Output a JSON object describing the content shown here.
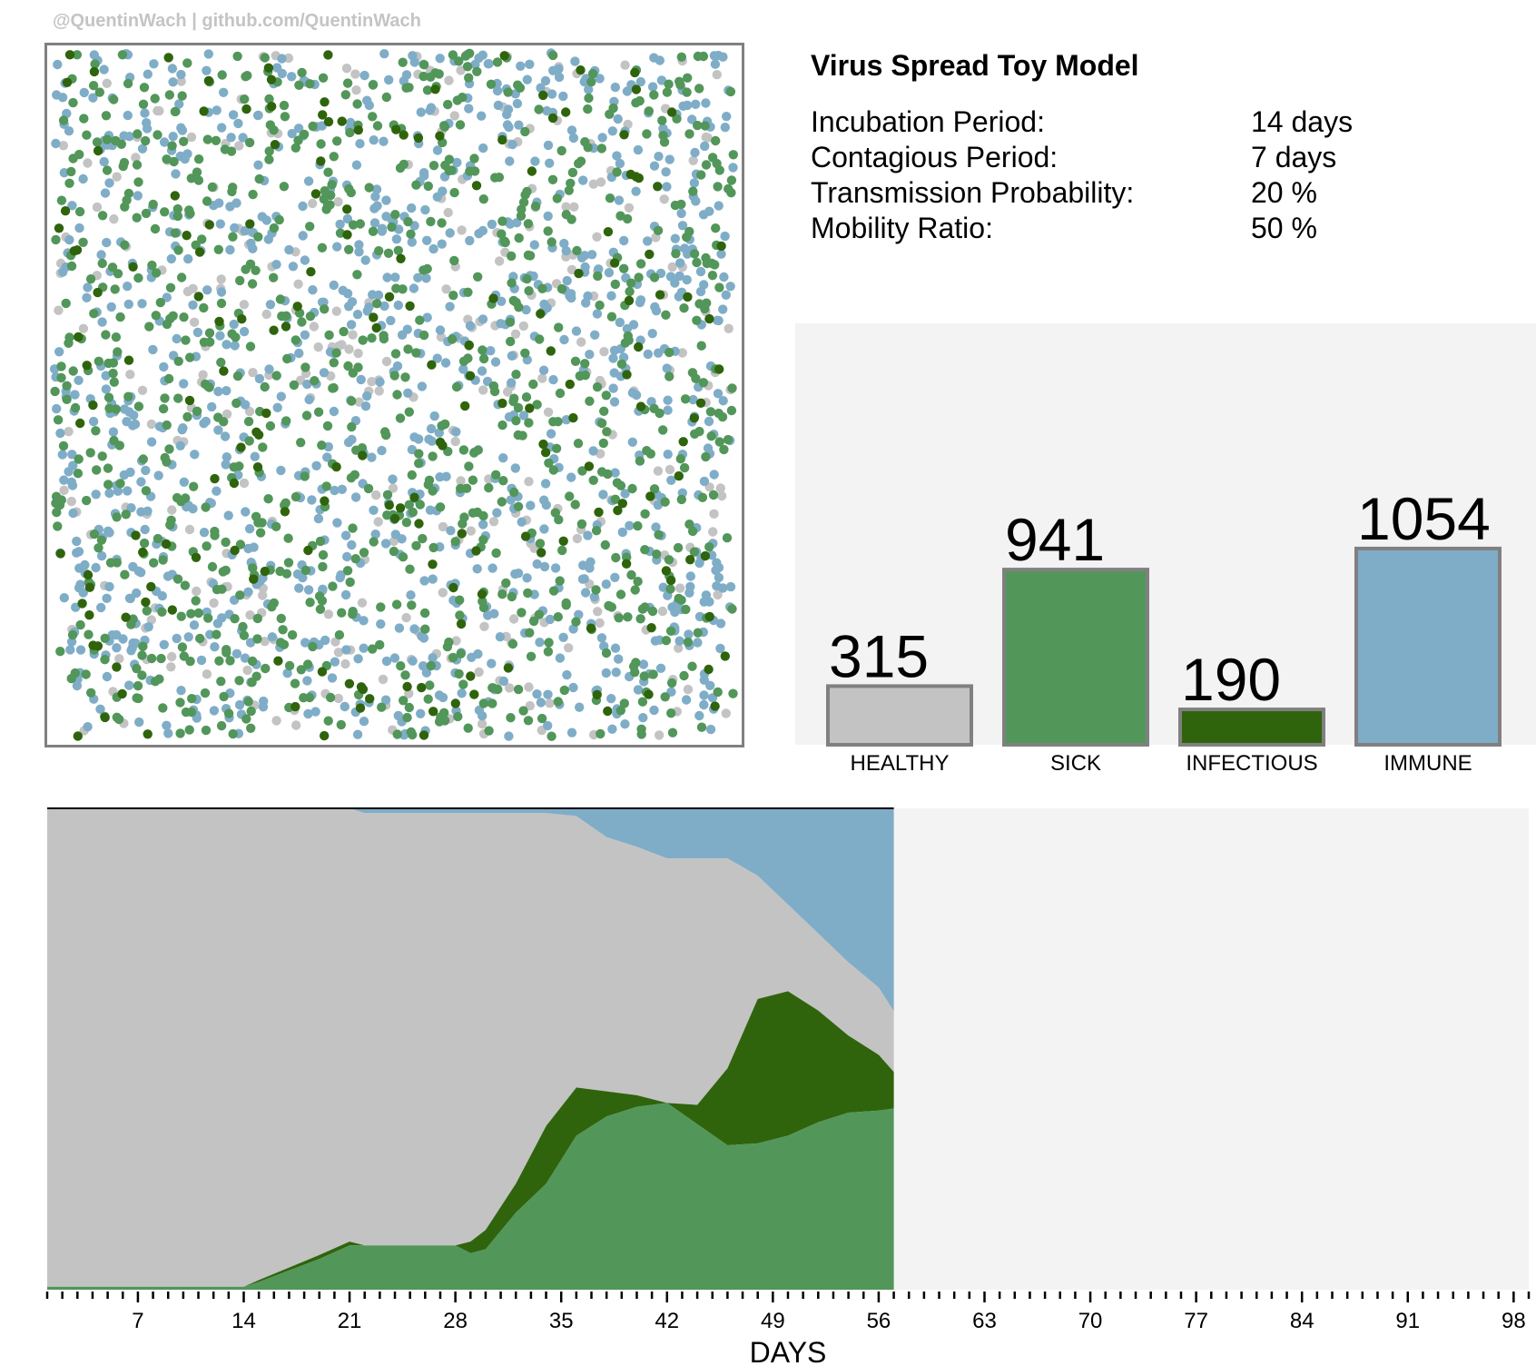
{
  "credit": "@QuentinWach | github.com/QuentinWach",
  "title": "Virus Spread Toy Model",
  "parameters": [
    {
      "label": "Incubation Period:",
      "value": "14 days"
    },
    {
      "label": "Contagious Period:",
      "value": "7 days"
    },
    {
      "label": "Transmission Probability:",
      "value": "20 %"
    },
    {
      "label": "Mobility Ratio:",
      "value": "50 %"
    }
  ],
  "colors": {
    "healthy": "#c3c3c3",
    "sick": "#52965a",
    "infectious": "#2f640d",
    "immune": "#7fadc7",
    "panel": "#f3f3f3",
    "border": "#808080"
  },
  "chart_data": [
    {
      "type": "scatter",
      "description": "population simulation",
      "counts": {
        "healthy": 315,
        "sick": 941,
        "infectious": 190,
        "immune": 1054
      }
    },
    {
      "type": "bar",
      "categories": [
        "HEALTHY",
        "SICK",
        "INFECTIOUS",
        "IMMUNE"
      ],
      "values": [
        315,
        941,
        190,
        1054
      ],
      "colors": [
        "#c3c3c3",
        "#52965a",
        "#2f640d",
        "#7fadc7"
      ],
      "ylim": [
        0,
        1400
      ]
    },
    {
      "type": "area",
      "xlabel": "DAYS",
      "xticks": [
        7,
        14,
        21,
        28,
        35,
        42,
        49,
        56,
        63,
        70,
        77,
        84,
        91,
        98
      ],
      "xlim": [
        1,
        99
      ],
      "ylim": [
        0,
        2500
      ],
      "x": [
        1,
        14,
        15,
        17,
        19,
        21,
        22,
        24,
        26,
        28,
        29,
        30,
        32,
        34,
        36,
        38,
        40,
        42,
        44,
        46,
        48,
        50,
        52,
        54,
        56,
        57
      ],
      "sick": [
        15,
        15,
        40,
        100,
        160,
        230,
        230,
        230,
        230,
        230,
        190,
        210,
        400,
        550,
        800,
        900,
        950,
        970,
        860,
        750,
        760,
        800,
        870,
        920,
        930,
        941
      ],
      "infectious": [
        0,
        0,
        10,
        15,
        20,
        20,
        0,
        0,
        0,
        0,
        60,
        100,
        150,
        300,
        250,
        130,
        60,
        0,
        100,
        400,
        750,
        750,
        580,
        400,
        290,
        190
      ],
      "immune": [
        0,
        0,
        0,
        0,
        0,
        0,
        25,
        25,
        25,
        25,
        25,
        25,
        25,
        25,
        40,
        150,
        200,
        260,
        260,
        260,
        350,
        500,
        650,
        800,
        930,
        1054
      ]
    }
  ]
}
